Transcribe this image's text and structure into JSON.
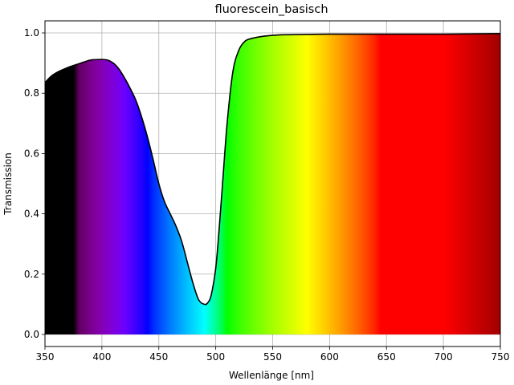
{
  "chart_data": {
    "type": "area",
    "title": "fluorescein_basisch",
    "xlabel": "Wellenlänge [nm]",
    "ylabel": "Transmission",
    "xlim": [
      350,
      750
    ],
    "ylim": [
      -0.04,
      1.04
    ],
    "xticks": [
      350,
      400,
      450,
      500,
      550,
      600,
      650,
      700,
      750
    ],
    "xtick_labels": [
      "350",
      "400",
      "450",
      "500",
      "550",
      "600",
      "650",
      "700",
      "750"
    ],
    "yticks": [
      0.0,
      0.2,
      0.4,
      0.6,
      0.8,
      1.0
    ],
    "ytick_labels": [
      "0.0",
      "0.2",
      "0.4",
      "0.6",
      "0.8",
      "1.0"
    ],
    "grid": true,
    "fill": "visible-spectrum",
    "line_color": "#000000",
    "series": [
      {
        "x": [
          350,
          355,
          360,
          370,
          380,
          390,
          400,
          405,
          410,
          415,
          420,
          425,
          430,
          435,
          440,
          445,
          450,
          455,
          460,
          465,
          470,
          475,
          480,
          485,
          490,
          493,
          496,
          500,
          503,
          506,
          510,
          515,
          520,
          525,
          530,
          540,
          550,
          560,
          580,
          600,
          650,
          700,
          750
        ],
        "y": [
          0.835,
          0.855,
          0.868,
          0.885,
          0.898,
          0.91,
          0.912,
          0.91,
          0.9,
          0.88,
          0.85,
          0.815,
          0.775,
          0.72,
          0.655,
          0.58,
          0.5,
          0.44,
          0.4,
          0.36,
          0.31,
          0.24,
          0.17,
          0.115,
          0.1,
          0.105,
          0.13,
          0.22,
          0.35,
          0.5,
          0.7,
          0.87,
          0.94,
          0.97,
          0.98,
          0.988,
          0.992,
          0.994,
          0.995,
          0.996,
          0.996,
          0.996,
          0.998
        ]
      }
    ]
  }
}
